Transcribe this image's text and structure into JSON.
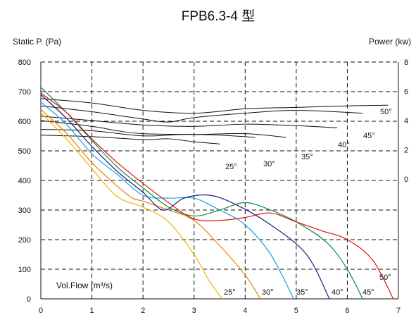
{
  "chart_data": {
    "type": "line",
    "title": "FPB6.3-4 型",
    "ylabel_left": "Static P. (Pa)",
    "ylabel_right": "Power (kw)",
    "xlabel": "Vol.Flow (m³/s)",
    "xlim": [
      0,
      7
    ],
    "ylim_left": [
      0,
      800
    ],
    "ylim_right": [
      0,
      8
    ],
    "x_ticks": [
      "0",
      "1",
      "2",
      "3",
      "4",
      "5",
      "6",
      "7"
    ],
    "y_ticks_left": [
      "0",
      "100",
      "200",
      "300",
      "400",
      "500",
      "600",
      "700",
      "800"
    ],
    "y_ticks_right": [
      "0",
      "2",
      "4",
      "6",
      "8"
    ],
    "grid": true,
    "pressure_series": [
      {
        "name": "25°",
        "color": "#f2b600",
        "points": [
          [
            0,
            630
          ],
          [
            0.5,
            540
          ],
          [
            1,
            440
          ],
          [
            1.5,
            345
          ],
          [
            2,
            310
          ],
          [
            2.5,
            260
          ],
          [
            3,
            150
          ],
          [
            3.3,
            60
          ],
          [
            3.55,
            0
          ]
        ]
      },
      {
        "name": "30°",
        "color": "#e8820c",
        "points": [
          [
            0,
            640
          ],
          [
            0.5,
            560
          ],
          [
            1,
            460
          ],
          [
            1.5,
            380
          ],
          [
            1.8,
            340
          ],
          [
            2,
            330
          ],
          [
            2.5,
            300
          ],
          [
            3,
            265
          ],
          [
            3.5,
            180
          ],
          [
            4,
            80
          ],
          [
            4.3,
            0
          ]
        ]
      },
      {
        "name": "35°",
        "color": "#1aa3dc",
        "points": [
          [
            0,
            665
          ],
          [
            0.5,
            590
          ],
          [
            1,
            490
          ],
          [
            1.5,
            420
          ],
          [
            2,
            350
          ],
          [
            2.5,
            340
          ],
          [
            3,
            340
          ],
          [
            3.5,
            300
          ],
          [
            4,
            250
          ],
          [
            4.5,
            150
          ],
          [
            4.95,
            0
          ]
        ]
      },
      {
        "name": "40°",
        "color": "#1a1a80",
        "points": [
          [
            0,
            690
          ],
          [
            0.5,
            610
          ],
          [
            1,
            515
          ],
          [
            1.5,
            430
          ],
          [
            2,
            360
          ],
          [
            2.4,
            300
          ],
          [
            2.8,
            340
          ],
          [
            3.3,
            350
          ],
          [
            3.8,
            320
          ],
          [
            4.5,
            250
          ],
          [
            5.2,
            150
          ],
          [
            5.65,
            0
          ]
        ]
      },
      {
        "name": "45°",
        "color": "#0a8f3a",
        "points": [
          [
            0,
            715
          ],
          [
            0.5,
            630
          ],
          [
            1,
            535
          ],
          [
            1.5,
            445
          ],
          [
            2,
            375
          ],
          [
            2.5,
            310
          ],
          [
            3,
            280
          ],
          [
            3.5,
            300
          ],
          [
            4,
            325
          ],
          [
            4.5,
            300
          ],
          [
            5,
            260
          ],
          [
            5.6,
            190
          ],
          [
            6,
            100
          ],
          [
            6.3,
            0
          ]
        ]
      },
      {
        "name": "50°",
        "color": "#e01010",
        "points": [
          [
            0,
            695
          ],
          [
            0.5,
            630
          ],
          [
            1,
            540
          ],
          [
            1.5,
            460
          ],
          [
            2,
            390
          ],
          [
            2.5,
            325
          ],
          [
            3,
            270
          ],
          [
            3.5,
            265
          ],
          [
            4,
            275
          ],
          [
            4.5,
            290
          ],
          [
            5,
            260
          ],
          [
            5.5,
            230
          ],
          [
            6,
            200
          ],
          [
            6.5,
            130
          ],
          [
            6.9,
            0
          ]
        ]
      }
    ],
    "power_series": [
      {
        "name": "25°",
        "points": [
          [
            0,
            3.0
          ],
          [
            1,
            2.9
          ],
          [
            2,
            2.7
          ],
          [
            2.5,
            2.75
          ],
          [
            3,
            2.55
          ],
          [
            3.5,
            2.4
          ]
        ]
      },
      {
        "name": "30°",
        "points": [
          [
            0,
            3.4
          ],
          [
            1,
            3.3
          ],
          [
            2,
            2.95
          ],
          [
            2.8,
            3.05
          ],
          [
            3.5,
            3.0
          ],
          [
            4.2,
            2.85
          ]
        ]
      },
      {
        "name": "35°",
        "points": [
          [
            0,
            4.0
          ],
          [
            1,
            3.6
          ],
          [
            1.5,
            3.3
          ],
          [
            2,
            3.1
          ],
          [
            3,
            3.05
          ],
          [
            4,
            3.1
          ],
          [
            4.8,
            2.85
          ]
        ]
      },
      {
        "name": "40°",
        "points": [
          [
            0,
            4.3
          ],
          [
            1,
            4.0
          ],
          [
            2,
            3.7
          ],
          [
            3,
            3.6
          ],
          [
            4,
            3.75
          ],
          [
            5,
            3.65
          ],
          [
            5.8,
            3.5
          ]
        ]
      },
      {
        "name": "45°",
        "points": [
          [
            0,
            5.0
          ],
          [
            1,
            4.6
          ],
          [
            2,
            4.1
          ],
          [
            2.5,
            3.9
          ],
          [
            3,
            4.2
          ],
          [
            4,
            4.5
          ],
          [
            5,
            4.7
          ],
          [
            6.3,
            4.5
          ]
        ]
      },
      {
        "name": "50°",
        "points": [
          [
            0,
            5.5
          ],
          [
            1,
            5.2
          ],
          [
            2,
            4.7
          ],
          [
            3,
            4.5
          ],
          [
            4,
            4.8
          ],
          [
            5,
            4.9
          ],
          [
            6,
            5.0
          ],
          [
            6.8,
            5.05
          ]
        ]
      }
    ],
    "annotations": [
      "25°",
      "30°",
      "35°",
      "40°",
      "45°",
      "50°"
    ]
  }
}
